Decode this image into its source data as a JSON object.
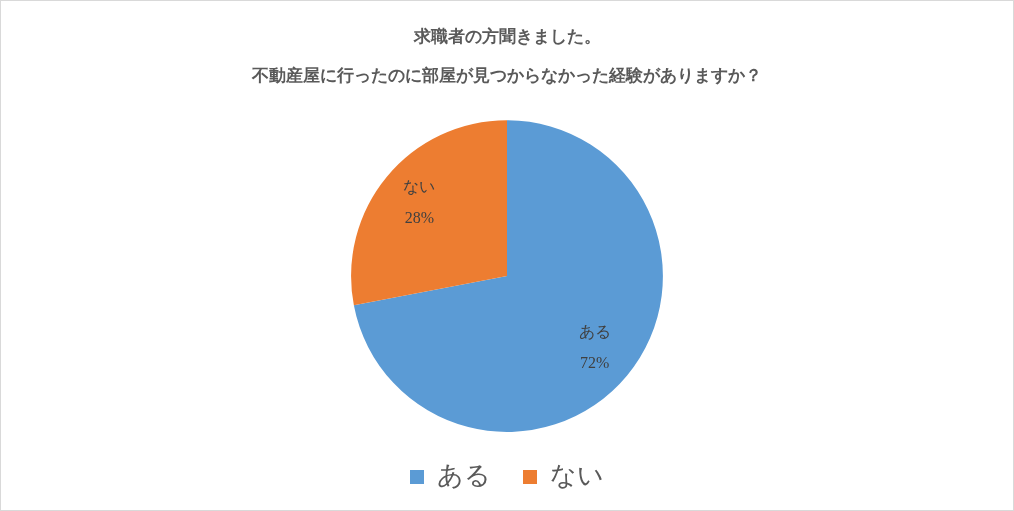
{
  "chart_data": {
    "type": "pie",
    "title": "求職者の方聞きました。",
    "subtitle": "不動産屋に行ったのに部屋が見つからなかった経験がありますか？",
    "categories": [
      "ある",
      "ない"
    ],
    "values": [
      72,
      28
    ],
    "colors": [
      "#5b9bd5",
      "#ed7d31"
    ],
    "value_labels": [
      "72%",
      "28%"
    ],
    "legend": "bottom"
  }
}
